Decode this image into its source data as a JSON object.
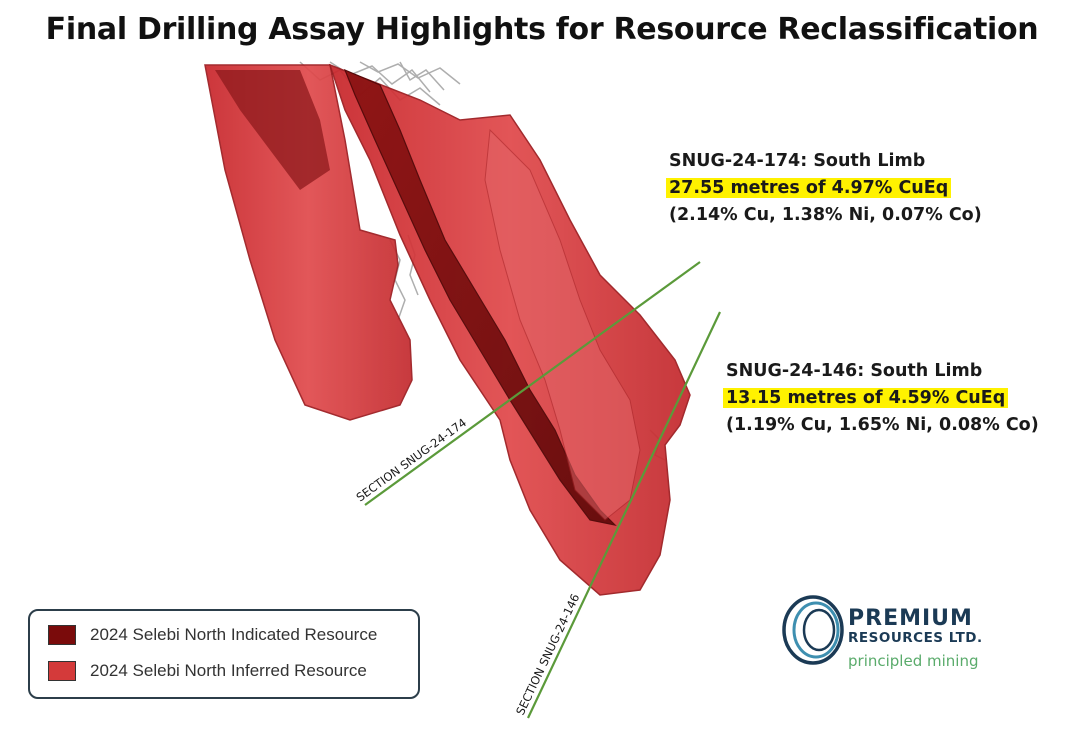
{
  "title": "Final Drilling Assay Highlights for Resource Reclassification",
  "callouts": [
    {
      "hole": "SNUG-24-174: South Limb",
      "highlight": "27.55 metres of 4.97% CuEq",
      "detail": "(2.14% Cu, 1.38% Ni, 0.07% Co)"
    },
    {
      "hole": "SNUG-24-146: South Limb",
      "highlight": "13.15 metres of 4.59% CuEq",
      "detail": "(1.19% Cu, 1.65% Ni, 0.08% Co)"
    }
  ],
  "sections": [
    {
      "label": "SECTION SNUG-24-174"
    },
    {
      "label": "SECTION SNUG-24-146"
    }
  ],
  "legend": {
    "items": [
      {
        "label": "2024 Selebi North Indicated Resource",
        "color": "#7a0b0b"
      },
      {
        "label": "2024 Selebi North Inferred Resource",
        "color": "#d43a3a"
      }
    ]
  },
  "logo": {
    "name": "PREMIUM",
    "sub": "RESOURCES LTD.",
    "tagline": "principled mining"
  },
  "colors": {
    "inferred": "#d43a3a",
    "indicated": "#7a0b0b",
    "section_line": "#5b9a3a",
    "highlight": "#fff200",
    "logo_blue": "#1b3a55",
    "logo_green": "#5aab6b"
  }
}
